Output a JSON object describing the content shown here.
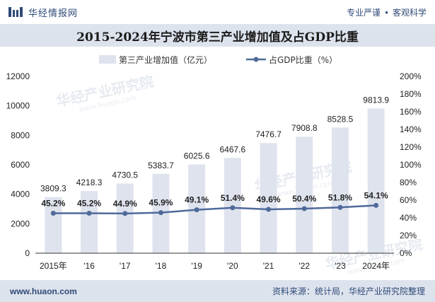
{
  "header": {
    "brand_name": "华经情报网",
    "tagline_left": "专业严谨",
    "tagline_right": "客观科学"
  },
  "footer": {
    "url": "www.huaon.com",
    "source": "资料来源：统计局，华经产业研究院整理"
  },
  "watermark": {
    "cn": "华经产业研究院",
    "en": "www.huaon.com"
  },
  "colors": {
    "bar": "#dfe3ee",
    "line": "#4f6a9a",
    "band": "#dde3ed",
    "brand": "#2f4a78"
  },
  "chart_data": {
    "type": "bar",
    "title": "2015-2024年宁波市第三产业增加值及占GDP比重",
    "categories": [
      "2015年",
      "'16",
      "'17",
      "'18",
      "'19",
      "'20",
      "'21",
      "'22",
      "'23",
      "2024年"
    ],
    "series": [
      {
        "name": "第三产业增加值（亿元）",
        "type": "bar",
        "axis": "left",
        "values": [
          3809.3,
          4218.3,
          4730.5,
          5383.7,
          6025.6,
          6467.6,
          7476.7,
          7908.8,
          8528.5,
          9813.9
        ],
        "labels": [
          "3809.3",
          "4218.3",
          "4730.5",
          "5383.7",
          "6025.6",
          "6467.6",
          "7476.7",
          "7908.8",
          "8528.5",
          "9813.9"
        ]
      },
      {
        "name": "占GDP比重（%）",
        "type": "line",
        "axis": "right",
        "values": [
          45.2,
          45.2,
          44.9,
          45.9,
          49.1,
          51.4,
          49.6,
          50.4,
          51.8,
          54.1
        ],
        "labels": [
          "45.2%",
          "45.2%",
          "44.9%",
          "45.9%",
          "49.1%",
          "51.4%",
          "49.6%",
          "50.4%",
          "51.8%",
          "54.1%"
        ]
      }
    ],
    "y_left": {
      "min": 0,
      "max": 12000,
      "ticks": [
        "0",
        "2000",
        "4000",
        "6000",
        "8000",
        "10000",
        "12000"
      ]
    },
    "y_right": {
      "min": 0,
      "max": 200,
      "ticks": [
        "0%",
        "20%",
        "40%",
        "60%",
        "80%",
        "100%",
        "120%",
        "140%",
        "160%",
        "180%",
        "200%"
      ]
    },
    "legend_position": "top-center",
    "grid": false
  }
}
